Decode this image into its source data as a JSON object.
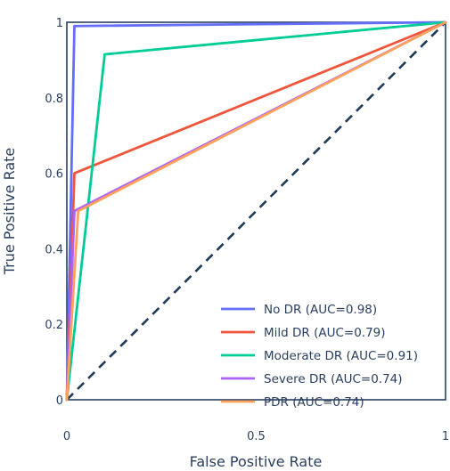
{
  "chart_data": {
    "type": "line",
    "xlabel": "False Positive Rate",
    "ylabel": "True Positive Rate",
    "xlim": [
      0,
      1
    ],
    "ylim": [
      0,
      1
    ],
    "x_ticks": [
      0,
      0.5,
      1
    ],
    "x_tick_labels": [
      "0",
      "0.5",
      "1"
    ],
    "y_ticks": [
      0,
      0.2,
      0.4,
      0.6,
      0.8,
      1
    ],
    "y_tick_labels": [
      "0",
      "0.2",
      "0.4",
      "0.6",
      "0.8",
      "1"
    ],
    "grid": false,
    "legend_position": "bottom-right",
    "series": [
      {
        "name": "No DR (AUC=0.98)",
        "color": "#636efa",
        "x": [
          0,
          0.02,
          1
        ],
        "y": [
          0,
          0.99,
          1
        ]
      },
      {
        "name": "Mild DR (AUC=0.79)",
        "color": "#ef553b",
        "x": [
          0,
          0.02,
          1
        ],
        "y": [
          0,
          0.6,
          1
        ]
      },
      {
        "name": "Moderate DR (AUC=0.91)",
        "color": "#00cc96",
        "x": [
          0,
          0.1,
          1
        ],
        "y": [
          0,
          0.915,
          1
        ]
      },
      {
        "name": "Severe DR (AUC=0.74)",
        "color": "#ab63fa",
        "x": [
          0,
          0.02,
          1
        ],
        "y": [
          0,
          0.5,
          1
        ]
      },
      {
        "name": "PDR (AUC=0.74)",
        "color": "#ffa15a",
        "x": [
          0,
          0.03,
          1
        ],
        "y": [
          0,
          0.5,
          1
        ]
      }
    ],
    "reference_line": {
      "style": "dashed",
      "color": "#1f3a5a",
      "x": [
        0,
        1
      ],
      "y": [
        0,
        1
      ]
    }
  }
}
